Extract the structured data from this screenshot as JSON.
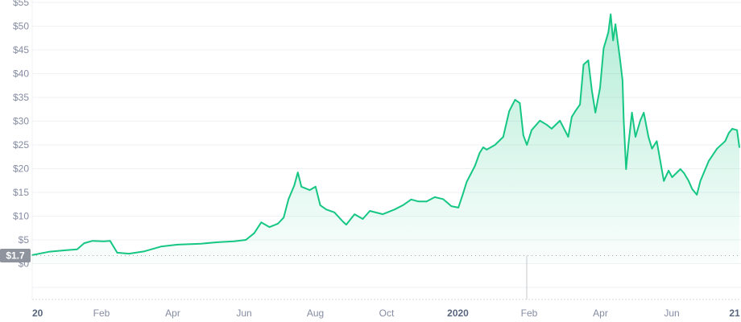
{
  "chart_data": {
    "type": "area",
    "title": "",
    "xlabel": "",
    "ylabel": "",
    "ylim": [
      0,
      55
    ],
    "grid": true,
    "line_color": "#16c784",
    "fill_color": "#16c784",
    "y_ticks": [
      "$0",
      "$5",
      "$10",
      "$15",
      "$20",
      "$25",
      "$30",
      "$35",
      "$40",
      "$45",
      "$50",
      "$55"
    ],
    "y_tick_values": [
      0,
      5,
      10,
      15,
      20,
      25,
      30,
      35,
      40,
      45,
      50,
      55
    ],
    "x_ticks": [
      "20",
      "Feb",
      "Apr",
      "Jun",
      "Aug",
      "Oct",
      "2020",
      "Feb",
      "Apr",
      "Jun",
      "21"
    ],
    "x_major_ticks": [
      "20",
      "2020",
      "21"
    ],
    "reference_price": {
      "label": "$1.7",
      "value": 1.7,
      "badge_color": "#8e939e"
    },
    "series": [
      {
        "x": [
          "2019-01-01",
          "2019-01-15",
          "2019-01-28",
          "2019-02-08",
          "2019-02-14",
          "2019-02-21",
          "2019-03-03",
          "2019-03-08",
          "2019-03-14",
          "2019-03-24",
          "2019-04-06",
          "2019-04-20",
          "2019-05-04",
          "2019-05-24",
          "2019-06-07",
          "2019-06-21",
          "2019-07-01",
          "2019-07-08",
          "2019-07-14",
          "2019-07-21",
          "2019-07-28",
          "2019-08-02",
          "2019-08-06",
          "2019-08-11",
          "2019-08-14",
          "2019-08-17",
          "2019-08-24",
          "2019-08-29",
          "2019-09-02",
          "2019-09-07",
          "2019-09-14",
          "2019-09-21",
          "2019-09-24",
          "2019-10-01",
          "2019-10-08",
          "2019-10-14",
          "2019-10-25",
          "2019-11-04",
          "2019-11-11",
          "2019-11-18",
          "2019-11-24",
          "2019-12-01",
          "2019-12-08",
          "2019-12-15",
          "2019-12-22",
          "2019-12-28",
          "2020-01-01",
          "2020-01-04",
          "2020-01-11",
          "2020-01-15",
          "2020-01-18",
          "2020-01-21",
          "2020-01-28",
          "2020-02-04",
          "2020-02-09",
          "2020-02-14",
          "2020-02-18",
          "2020-02-21",
          "2020-02-24",
          "2020-02-28",
          "2020-03-06",
          "2020-03-12",
          "2020-03-16",
          "2020-03-23",
          "2020-03-30",
          "2020-04-02",
          "2020-04-05",
          "2020-04-09",
          "2020-04-12",
          "2020-04-16",
          "2020-04-19",
          "2020-04-22",
          "2020-04-26",
          "2020-04-29",
          "2020-05-03",
          "2020-05-05",
          "2020-05-07",
          "2020-05-09",
          "2020-05-13",
          "2020-05-15",
          "2020-05-16",
          "2020-05-18",
          "2020-05-20",
          "2020-05-23",
          "2020-05-26",
          "2020-05-30",
          "2020-06-02",
          "2020-06-06",
          "2020-06-09",
          "2020-06-13",
          "2020-06-16",
          "2020-06-19",
          "2020-06-23",
          "2020-06-26",
          "2020-07-03",
          "2020-07-06",
          "2020-07-10",
          "2020-07-13",
          "2020-07-17",
          "2020-07-20",
          "2020-07-27",
          "2020-08-03",
          "2020-08-10",
          "2020-08-13",
          "2020-08-16",
          "2020-08-20",
          "2020-08-22"
        ],
        "y": [
          1.8,
          2.5,
          2.8,
          3.0,
          4.3,
          4.8,
          4.7,
          4.8,
          2.3,
          2.1,
          2.6,
          3.6,
          4.0,
          4.2,
          4.5,
          4.7,
          5.0,
          6.4,
          8.7,
          7.7,
          8.4,
          9.7,
          13.5,
          16.5,
          19.2,
          16.2,
          15.5,
          16.2,
          12.3,
          11.4,
          10.8,
          8.9,
          8.2,
          10.4,
          9.4,
          11.1,
          10.4,
          11.4,
          12.3,
          13.5,
          13.1,
          13.1,
          14.0,
          13.6,
          12.1,
          11.8,
          14.8,
          17.2,
          20.6,
          23.3,
          24.5,
          24.0,
          25.0,
          26.7,
          32.1,
          34.5,
          33.8,
          27.0,
          25.0,
          28.1,
          30.1,
          29.2,
          28.4,
          30.1,
          26.7,
          30.9,
          32.1,
          33.5,
          41.9,
          42.8,
          36.5,
          31.8,
          37.0,
          45.3,
          48.7,
          52.5,
          47.0,
          50.4,
          42.8,
          38.6,
          30.1,
          19.9,
          25.0,
          31.8,
          26.7,
          30.1,
          31.8,
          26.7,
          24.2,
          25.8,
          21.6,
          17.4,
          19.6,
          18.2,
          19.9,
          19.1,
          17.4,
          15.7,
          14.5,
          17.4,
          21.6,
          24.2,
          25.8,
          27.5,
          28.4,
          28.1,
          24.5
        ]
      }
    ]
  }
}
